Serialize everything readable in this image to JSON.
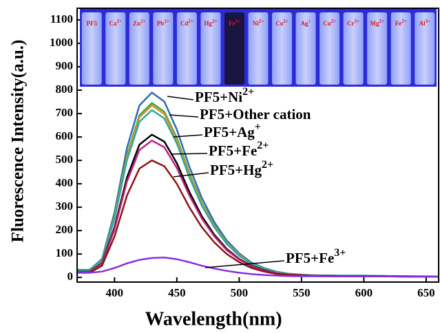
{
  "chart_data": {
    "type": "line",
    "xlabel": "Wavelength(nm)",
    "ylabel": "Fluorescence Intensity(a.u.)",
    "x": [
      370,
      380,
      390,
      400,
      410,
      420,
      430,
      440,
      450,
      460,
      470,
      480,
      490,
      500,
      510,
      520,
      530,
      540,
      550,
      560,
      580,
      600,
      620,
      640,
      660
    ],
    "series": [
      {
        "color": "#2a6db5",
        "values": [
          32,
          32,
          79,
          277,
          553,
          735,
          790,
          751,
          632,
          474,
          340,
          237,
          158,
          103,
          63,
          40,
          24,
          16,
          12,
          9,
          8,
          8,
          6,
          5,
          4
        ]
      },
      {
        "color": "#3aa63a",
        "values": [
          30,
          30,
          75,
          261,
          522,
          693,
          745,
          708,
          596,
          447,
          320,
          224,
          149,
          97,
          60,
          37,
          22,
          15,
          11,
          9,
          7,
          7,
          6,
          4,
          4
        ]
      },
      {
        "color": "#d9932a",
        "values": [
          29,
          29,
          74,
          257,
          515,
          684,
          735,
          698,
          588,
          441,
          316,
          221,
          147,
          96,
          59,
          37,
          22,
          15,
          11,
          9,
          7,
          7,
          6,
          4,
          4
        ]
      },
      {
        "color": "#2fa7a0",
        "values": [
          29,
          29,
          72,
          250,
          501,
          665,
          715,
          679,
          572,
          429,
          307,
          215,
          143,
          93,
          57,
          36,
          21,
          14,
          11,
          9,
          7,
          7,
          6,
          4,
          4
        ]
      },
      {
        "color": "#000000",
        "values": [
          24,
          24,
          61,
          214,
          427,
          567,
          610,
          580,
          488,
          366,
          262,
          183,
          122,
          79,
          49,
          31,
          18,
          12,
          9,
          7,
          6,
          6,
          5,
          4,
          3
        ]
      },
      {
        "color": "#c2227f",
        "values": [
          23,
          23,
          59,
          205,
          410,
          544,
          585,
          556,
          468,
          351,
          252,
          176,
          117,
          76,
          47,
          29,
          18,
          12,
          9,
          7,
          6,
          6,
          5,
          4,
          3
        ]
      },
      {
        "color": "#8b1414",
        "values": [
          20,
          20,
          50,
          175,
          350,
          465,
          500,
          475,
          400,
          300,
          215,
          150,
          100,
          65,
          40,
          25,
          15,
          10,
          8,
          6,
          5,
          5,
          4,
          3,
          3
        ]
      },
      {
        "color": "#8a2be2",
        "values": [
          20,
          20,
          25,
          40,
          60,
          75,
          83,
          85,
          78,
          65,
          50,
          38,
          28,
          20,
          14,
          10,
          8,
          6,
          5,
          5,
          4,
          4,
          4,
          3,
          3
        ]
      }
    ],
    "xlim": [
      370,
      660
    ],
    "xticks": [
      400,
      450,
      500,
      550,
      600,
      650
    ],
    "ylim": [
      -20,
      1150
    ],
    "yticks": [
      0,
      100,
      200,
      300,
      400,
      500,
      600,
      700,
      800,
      900,
      1000,
      1100
    ],
    "annotations": [
      {
        "text": "PF5+Ni",
        "sup": "2+"
      },
      {
        "text": "PF5+Other cation"
      },
      {
        "text": "PF5+Ag",
        "sup": "+"
      },
      {
        "text": "PF5+Fe",
        "sup": "2+"
      },
      {
        "text": "PF5+Hg",
        "sup": "2+"
      },
      {
        "text": "PF5+Fe",
        "sup": "3+"
      }
    ],
    "inset_labels": [
      {
        "text": "PF5"
      },
      {
        "text": "Ca",
        "sup": "2+"
      },
      {
        "text": "Zn",
        "sup": "2+"
      },
      {
        "text": "Pb",
        "sup": "2+"
      },
      {
        "text": "Cd",
        "sup": "2+"
      },
      {
        "text": "Hg",
        "sup": "2+"
      },
      {
        "text": "Fe",
        "sup": "3+"
      },
      {
        "text": "Ni",
        "sup": "2+"
      },
      {
        "text": "Co",
        "sup": "2+"
      },
      {
        "text": "Ag",
        "sup": "+"
      },
      {
        "text": "Cu",
        "sup": "2+"
      },
      {
        "text": "Cr",
        "sup": "3+"
      },
      {
        "text": "Mg",
        "sup": "2+"
      },
      {
        "text": "Fe",
        "sup": "2+"
      },
      {
        "text": "Al",
        "sup": "3+"
      }
    ]
  }
}
